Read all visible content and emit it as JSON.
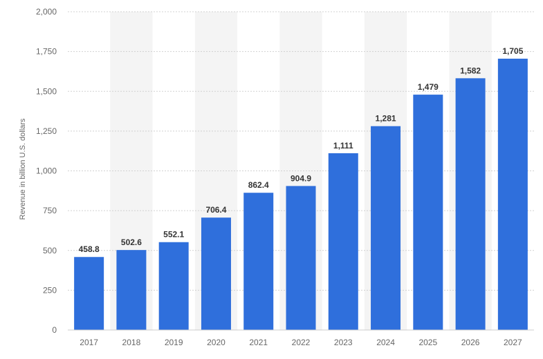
{
  "chart_data": {
    "type": "bar",
    "title": "",
    "xlabel": "",
    "ylabel": "Revenue in billion U.S. dollars",
    "categories": [
      "2017",
      "2018",
      "2019",
      "2020",
      "2021",
      "2022",
      "2023",
      "2024",
      "2025",
      "2026",
      "2027"
    ],
    "values": [
      458.8,
      502.6,
      552.1,
      706.4,
      862.4,
      904.9,
      1111,
      1281,
      1479,
      1582,
      1705
    ],
    "data_labels": [
      "458.8",
      "502.6",
      "552.1",
      "706.4",
      "862.4",
      "904.9",
      "1,111",
      "1,281",
      "1,479",
      "1,582",
      "1,705"
    ],
    "ylim": [
      0,
      2000
    ],
    "y_ticks": [
      0,
      250,
      500,
      750,
      1000,
      1250,
      1500,
      1750,
      2000
    ],
    "y_tick_labels": [
      "0",
      "250",
      "500",
      "750",
      "1,000",
      "1,250",
      "1,500",
      "1,750",
      "2,000"
    ],
    "grid": true,
    "legend": "none",
    "colors": {
      "bar": "#2f6fdc",
      "band": "#f4f4f4",
      "grid": "#d0d0d0",
      "baseline": "#cccccc"
    }
  }
}
